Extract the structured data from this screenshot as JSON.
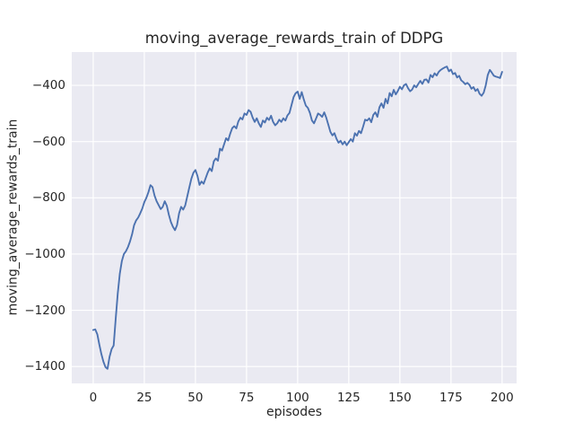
{
  "figure": {
    "background": "#ffffff",
    "plot_background": "#eaeaf2",
    "grid_color": "#ffffff",
    "text_color": "#262626"
  },
  "chart_data": {
    "type": "line",
    "title": "moving_average_rewards_train of DDPG",
    "xlabel": "episodes",
    "ylabel": "moving_average_rewards_train",
    "line_color": "#4c72b0",
    "line_width": 1.9,
    "grid": true,
    "legend": false,
    "x_start": 0,
    "x_step": 1,
    "xlim": [
      -10.5,
      207.1
    ],
    "ylim": [
      -1460,
      -280
    ],
    "xticks": {
      "values": [
        0,
        25,
        50,
        75,
        100,
        125,
        150,
        175,
        200
      ],
      "labels": [
        "0",
        "25",
        "50",
        "75",
        "100",
        "125",
        "150",
        "175",
        "200"
      ]
    },
    "yticks": {
      "values": [
        -400,
        -600,
        -800,
        -1000,
        -1200,
        -1400
      ],
      "labels": [
        "−400",
        "−600",
        "−800",
        "−1000",
        "−1200",
        "−1400"
      ]
    },
    "series": [
      {
        "name": "moving_average_rewards_train",
        "values": [
          -1270,
          -1268,
          -1285,
          -1322,
          -1356,
          -1383,
          -1402,
          -1408,
          -1365,
          -1338,
          -1325,
          -1230,
          -1140,
          -1070,
          -1025,
          -1000,
          -990,
          -975,
          -955,
          -930,
          -897,
          -880,
          -870,
          -855,
          -838,
          -815,
          -800,
          -780,
          -755,
          -762,
          -792,
          -812,
          -826,
          -840,
          -832,
          -812,
          -828,
          -860,
          -886,
          -903,
          -915,
          -897,
          -855,
          -832,
          -842,
          -827,
          -795,
          -763,
          -732,
          -711,
          -701,
          -722,
          -754,
          -742,
          -750,
          -730,
          -710,
          -695,
          -705,
          -670,
          -660,
          -668,
          -625,
          -632,
          -610,
          -588,
          -596,
          -572,
          -552,
          -545,
          -553,
          -528,
          -515,
          -521,
          -500,
          -505,
          -488,
          -494,
          -515,
          -530,
          -517,
          -535,
          -548,
          -525,
          -532,
          -515,
          -523,
          -508,
          -530,
          -542,
          -535,
          -522,
          -530,
          -517,
          -525,
          -507,
          -498,
          -470,
          -442,
          -428,
          -422,
          -448,
          -424,
          -450,
          -472,
          -480,
          -498,
          -525,
          -535,
          -518,
          -500,
          -505,
          -512,
          -496,
          -515,
          -540,
          -565,
          -578,
          -570,
          -590,
          -604,
          -597,
          -610,
          -600,
          -613,
          -602,
          -591,
          -600,
          -570,
          -579,
          -562,
          -570,
          -547,
          -522,
          -525,
          -517,
          -531,
          -505,
          -496,
          -512,
          -478,
          -464,
          -480,
          -448,
          -464,
          -427,
          -439,
          -416,
          -432,
          -420,
          -405,
          -414,
          -400,
          -395,
          -410,
          -421,
          -415,
          -400,
          -407,
          -395,
          -384,
          -395,
          -380,
          -379,
          -390,
          -363,
          -371,
          -357,
          -365,
          -352,
          -345,
          -340,
          -336,
          -333,
          -350,
          -344,
          -360,
          -356,
          -372,
          -366,
          -382,
          -388,
          -396,
          -391,
          -398,
          -412,
          -406,
          -420,
          -413,
          -430,
          -437,
          -426,
          -400,
          -363,
          -345,
          -355,
          -366,
          -369,
          -371,
          -374,
          -352
        ]
      }
    ]
  }
}
